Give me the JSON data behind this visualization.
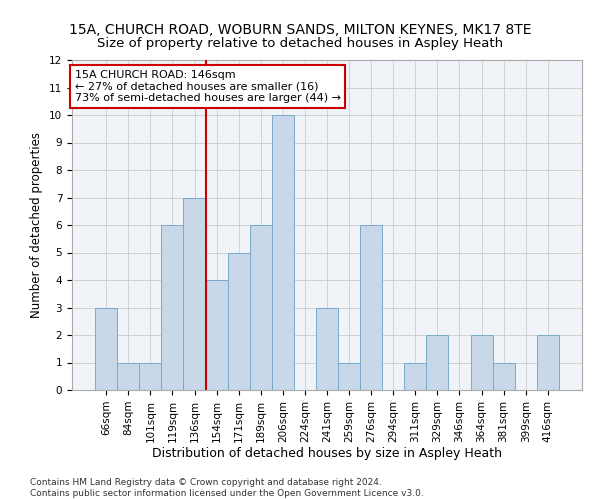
{
  "title": "15A, CHURCH ROAD, WOBURN SANDS, MILTON KEYNES, MK17 8TE",
  "subtitle": "Size of property relative to detached houses in Aspley Heath",
  "xlabel": "Distribution of detached houses by size in Aspley Heath",
  "ylabel": "Number of detached properties",
  "categories": [
    "66sqm",
    "84sqm",
    "101sqm",
    "119sqm",
    "136sqm",
    "154sqm",
    "171sqm",
    "189sqm",
    "206sqm",
    "224sqm",
    "241sqm",
    "259sqm",
    "276sqm",
    "294sqm",
    "311sqm",
    "329sqm",
    "346sqm",
    "364sqm",
    "381sqm",
    "399sqm",
    "416sqm"
  ],
  "values": [
    3,
    1,
    1,
    6,
    7,
    4,
    5,
    6,
    10,
    0,
    3,
    1,
    6,
    0,
    1,
    2,
    0,
    2,
    1,
    0,
    2
  ],
  "bar_color": "#c8d8e8",
  "bar_edge_color": "#7aaaca",
  "highlight_index": 4,
  "highlight_line_color": "#cc0000",
  "annotation_line1": "15A CHURCH ROAD: 146sqm",
  "annotation_line2": "← 27% of detached houses are smaller (16)",
  "annotation_line3": "73% of semi-detached houses are larger (44) →",
  "annotation_box_color": "#ffffff",
  "annotation_box_edge": "#cc0000",
  "ylim": [
    0,
    12
  ],
  "yticks": [
    0,
    1,
    2,
    3,
    4,
    5,
    6,
    7,
    8,
    9,
    10,
    11,
    12
  ],
  "footnote": "Contains HM Land Registry data © Crown copyright and database right 2024.\nContains public sector information licensed under the Open Government Licence v3.0.",
  "title_fontsize": 10,
  "subtitle_fontsize": 9.5,
  "xlabel_fontsize": 9,
  "ylabel_fontsize": 8.5,
  "tick_fontsize": 7.5,
  "annotation_fontsize": 8,
  "footnote_fontsize": 6.5
}
